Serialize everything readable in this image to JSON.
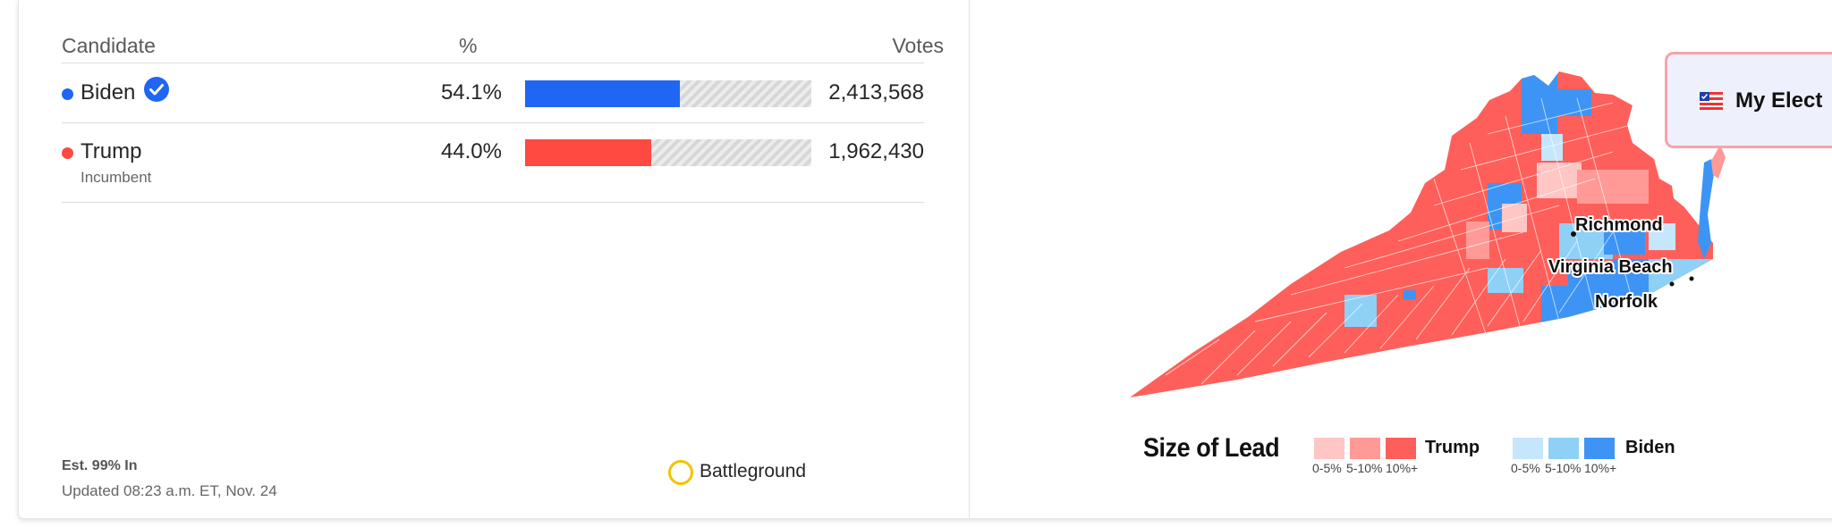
{
  "table": {
    "headers": {
      "candidate": "Candidate",
      "pct": "%",
      "votes": "Votes"
    },
    "rows": [
      {
        "name": "Biden",
        "pct": "54.1%",
        "pct_value": 54.1,
        "votes": "2,413,568",
        "winner": true,
        "sub": "",
        "color": "#1f66f5"
      },
      {
        "name": "Trump",
        "pct": "44.0%",
        "pct_value": 44.0,
        "votes": "1,962,430",
        "winner": false,
        "sub": "Incumbent",
        "color": "#ff4a41"
      }
    ]
  },
  "footer": {
    "est": "Est. 99% In",
    "updated": "Updated 08:23 a.m. ET, Nov. 24",
    "battleground": "Battleground"
  },
  "map": {
    "cities": [
      "Richmond",
      "Virginia Beach",
      "Norfolk"
    ],
    "legend": {
      "title": "Size of Lead",
      "trump": {
        "name": "Trump",
        "colors": [
          "#ffc6c4",
          "#ff9a96",
          "#ff5f5a"
        ]
      },
      "biden": {
        "name": "Biden",
        "colors": [
          "#c6e6fb",
          "#8fd0f7",
          "#3d94f5"
        ]
      },
      "ranges": [
        "0-5%",
        "5-10%",
        "10%+"
      ]
    }
  },
  "my_election": {
    "label": "My Elect"
  },
  "icons": {
    "winner": "checkmark-circle-icon",
    "battleground": "circle-outline-icon",
    "flag": "us-flag-icon"
  }
}
